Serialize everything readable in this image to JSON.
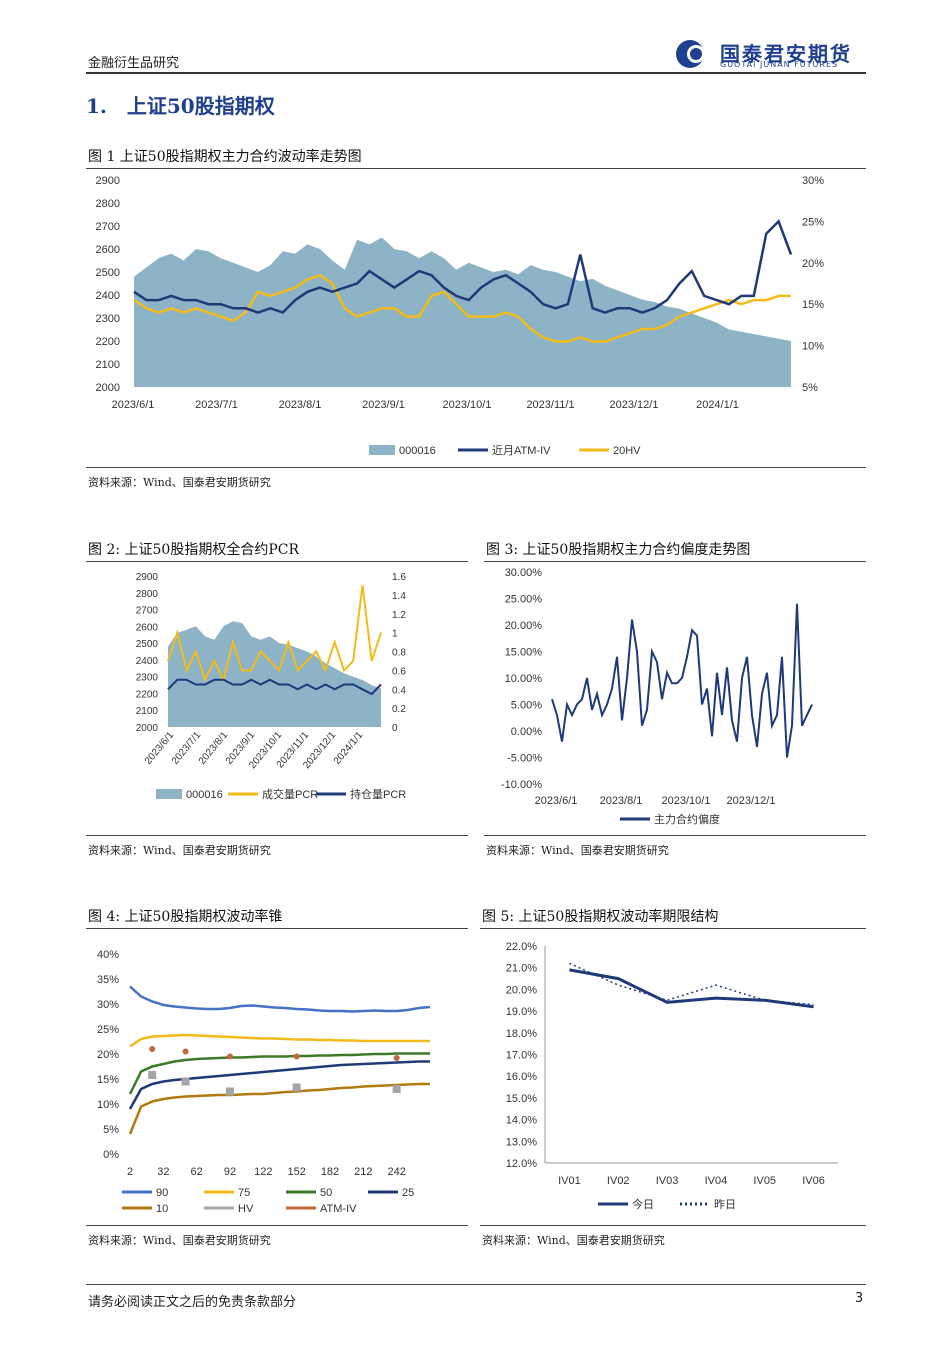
{
  "header": {
    "left": "金融衍生品研究",
    "logo_cn": "国泰君安期货",
    "logo_en": "GUOTAI JUNAN FUTURES"
  },
  "section_title": "1.　上证50股指期权",
  "figures": {
    "fig1_title": "图 1  上证50股指期权主力合约波动率走势图",
    "fig2_title": "图 2:  上证50股指期权全合约PCR",
    "fig3_title": "图 3:  上证50股指期权主力合约偏度走势图",
    "fig4_title": "图 4:  上证50股指期权波动率锥",
    "fig5_title": "图 5:  上证50股指期权波动率期限结构"
  },
  "source": "资料来源：Wind、国泰君安期货研究",
  "footer": {
    "disclaimer": "请务必阅读正文之后的免责条款部分",
    "page": "3"
  },
  "colors": {
    "area": "#8db3c7",
    "navy": "#1f3a78",
    "gold": "#f2bb1a",
    "blue": "#4472c4",
    "green": "#3d7a28",
    "olive": "#b07a10",
    "gray": "#a5a5a5",
    "brown": "#c0693a"
  },
  "chart_data": [
    {
      "id": "fig1",
      "type": "area+line",
      "x_ticks": [
        "2023/6/1",
        "2023/7/1",
        "2023/8/1",
        "2023/9/1",
        "2023/10/1",
        "2023/11/1",
        "2023/12/1",
        "2024/1/1"
      ],
      "y_left": {
        "range": [
          2000,
          2900
        ],
        "ticks": [
          "2900",
          "2800",
          "2700",
          "2600",
          "2500",
          "2400",
          "2300",
          "2200",
          "2100",
          "2000"
        ]
      },
      "y_right": {
        "range": [
          5,
          30
        ],
        "ticks": [
          "30%",
          "25%",
          "20%",
          "15%",
          "10%",
          "5%"
        ]
      },
      "series": [
        {
          "name": "000016",
          "axis": "left",
          "kind": "area",
          "values": [
            2480,
            2520,
            2560,
            2580,
            2550,
            2600,
            2590,
            2560,
            2540,
            2520,
            2500,
            2530,
            2590,
            2580,
            2620,
            2600,
            2550,
            2510,
            2640,
            2620,
            2650,
            2600,
            2590,
            2560,
            2590,
            2560,
            2510,
            2540,
            2520,
            2500,
            2510,
            2490,
            2530,
            2510,
            2500,
            2480,
            2460,
            2470,
            2440,
            2420,
            2400,
            2380,
            2370,
            2350,
            2340,
            2320,
            2300,
            2280,
            2250,
            2240,
            2230,
            2220,
            2210,
            2200
          ]
        },
        {
          "name": "近月ATM-IV",
          "axis": "right",
          "kind": "line",
          "values": [
            16.5,
            15.5,
            15.5,
            16,
            15.5,
            15.5,
            15,
            15,
            14.5,
            14.5,
            14,
            14.5,
            14,
            15.5,
            16.5,
            17,
            16.5,
            17,
            17.5,
            19,
            18,
            17,
            18,
            19,
            18.5,
            17,
            16,
            15.5,
            17,
            18,
            18.5,
            17.5,
            16.5,
            15,
            14.5,
            15,
            21,
            14.5,
            14,
            14.5,
            14.5,
            14,
            14.5,
            15.5,
            17.5,
            19,
            16,
            15.5,
            15,
            16,
            16,
            23.5,
            25,
            21
          ]
        },
        {
          "name": "20HV",
          "axis": "right",
          "kind": "line",
          "values": [
            15.5,
            14.5,
            14,
            14.5,
            14,
            14.5,
            14,
            13.5,
            13,
            14,
            16.5,
            16,
            16.5,
            17,
            18,
            18.5,
            17.5,
            14.5,
            13.5,
            14,
            14.5,
            14.5,
            13.5,
            13.5,
            16,
            16.5,
            15,
            13.5,
            13.5,
            13.5,
            14,
            13.5,
            12,
            11,
            10.5,
            10.5,
            11,
            10.5,
            10.5,
            11,
            11.5,
            12,
            12,
            12.5,
            13.5,
            14,
            14.5,
            15,
            15.5,
            15,
            15.5,
            15.5,
            16,
            16
          ]
        }
      ]
    },
    {
      "id": "fig2",
      "type": "area+line",
      "x_ticks": [
        "2023/6/1",
        "2023/7/1",
        "2023/8/1",
        "2023/9/1",
        "2023/10/1",
        "2023/11/1",
        "2023/12/1",
        "2024/1/1"
      ],
      "y_left": {
        "range": [
          2000,
          2900
        ],
        "ticks": [
          "2900",
          "2800",
          "2700",
          "2600",
          "2500",
          "2400",
          "2300",
          "2200",
          "2100",
          "2000"
        ]
      },
      "y_right": {
        "range": [
          0,
          1.6
        ],
        "ticks": [
          "1.6",
          "1.4",
          "1.2",
          "1",
          "0.8",
          "0.6",
          "0.4",
          "0.2",
          "0"
        ]
      },
      "series": [
        {
          "name": "000016",
          "axis": "left",
          "kind": "area",
          "values": [
            2480,
            2560,
            2580,
            2600,
            2540,
            2520,
            2600,
            2630,
            2620,
            2540,
            2520,
            2540,
            2500,
            2490,
            2470,
            2450,
            2420,
            2380,
            2350,
            2320,
            2300,
            2280,
            2250,
            2230
          ]
        },
        {
          "name": "成交量PCR",
          "axis": "right",
          "kind": "line",
          "values": [
            0.7,
            1.0,
            0.6,
            0.8,
            0.5,
            0.7,
            0.5,
            0.9,
            0.6,
            0.6,
            0.8,
            0.7,
            0.6,
            0.9,
            0.6,
            0.7,
            0.8,
            0.6,
            0.9,
            0.6,
            0.7,
            1.5,
            0.7,
            1.0
          ]
        },
        {
          "name": "持仓量PCR",
          "axis": "right",
          "kind": "line",
          "values": [
            0.4,
            0.5,
            0.5,
            0.45,
            0.45,
            0.5,
            0.5,
            0.45,
            0.45,
            0.5,
            0.45,
            0.5,
            0.45,
            0.45,
            0.4,
            0.45,
            0.4,
            0.45,
            0.4,
            0.45,
            0.45,
            0.4,
            0.35,
            0.45
          ]
        }
      ]
    },
    {
      "id": "fig3",
      "type": "line",
      "x_ticks": [
        "2023/6/1",
        "2023/8/1",
        "2023/10/1",
        "2023/12/1"
      ],
      "y": {
        "range": [
          -10,
          30
        ],
        "ticks": [
          "30.00%",
          "25.00%",
          "20.00%",
          "15.00%",
          "10.00%",
          "5.00%",
          "0.00%",
          "-5.00%",
          "-10.00%"
        ]
      },
      "series": [
        {
          "name": "主力合约偏度",
          "values": [
            6,
            3,
            -2,
            5,
            3,
            5,
            6,
            10,
            4,
            7,
            3,
            5,
            8,
            14,
            2,
            10,
            21,
            15,
            1,
            4,
            15,
            13,
            6,
            11,
            9,
            9,
            10,
            14,
            19,
            18,
            5,
            8,
            -1,
            11,
            3,
            12,
            2,
            -2,
            10,
            14,
            3,
            -3,
            7,
            11,
            1,
            3,
            14,
            -5,
            1,
            24,
            1,
            3,
            5
          ]
        }
      ]
    },
    {
      "id": "fig4",
      "type": "line",
      "x_ticks": [
        "2",
        "32",
        "62",
        "92",
        "122",
        "152",
        "182",
        "212",
        "242"
      ],
      "y": {
        "range": [
          0,
          40
        ],
        "ticks": [
          "40%",
          "35%",
          "30%",
          "25%",
          "20%",
          "15%",
          "10%",
          "5%",
          "0%"
        ]
      },
      "series": [
        {
          "name": "90",
          "values": [
            33.5,
            31.5,
            30.5,
            29.8,
            29.5,
            29.3,
            29.1,
            29,
            29,
            29.2,
            29.6,
            29.7,
            29.5,
            29.3,
            29.2,
            29,
            28.9,
            28.7,
            28.6,
            28.6,
            28.5,
            28.6,
            28.7,
            28.6,
            28.6,
            28.8,
            29.2,
            29.4
          ]
        },
        {
          "name": "75",
          "values": [
            21.5,
            23,
            23.5,
            23.6,
            23.7,
            23.8,
            23.7,
            23.6,
            23.5,
            23.4,
            23.3,
            23.2,
            23.1,
            23.1,
            23,
            22.9,
            22.9,
            22.8,
            22.8,
            22.7,
            22.7,
            22.6,
            22.6,
            22.6,
            22.6,
            22.6,
            22.6,
            22.6
          ]
        },
        {
          "name": "50",
          "values": [
            12,
            16.5,
            17.5,
            18,
            18.5,
            18.8,
            19,
            19.1,
            19.2,
            19.3,
            19.3,
            19.4,
            19.5,
            19.5,
            19.5,
            19.6,
            19.6,
            19.7,
            19.7,
            19.8,
            19.8,
            19.9,
            20,
            20,
            20.1,
            20.1,
            20.1,
            20.1
          ]
        },
        {
          "name": "25",
          "values": [
            9,
            13,
            14,
            14.5,
            14.8,
            15,
            15.2,
            15.4,
            15.6,
            15.8,
            16,
            16.2,
            16.4,
            16.6,
            16.8,
            17,
            17.2,
            17.4,
            17.6,
            17.8,
            17.9,
            18,
            18.1,
            18.2,
            18.3,
            18.4,
            18.5,
            18.5
          ]
        },
        {
          "name": "10",
          "values": [
            4,
            9.5,
            10.5,
            11,
            11.3,
            11.5,
            11.6,
            11.7,
            11.8,
            11.8,
            11.9,
            12,
            12,
            12.2,
            12.4,
            12.5,
            12.7,
            12.8,
            13,
            13.2,
            13.3,
            13.5,
            13.6,
            13.7,
            13.8,
            13.9,
            14,
            14
          ]
        },
        {
          "name": "HV",
          "kind": "marker",
          "points": [
            [
              22,
              15.8
            ],
            [
              52,
              14.5
            ],
            [
              92,
              12.5
            ],
            [
              152,
              13.3
            ],
            [
              242,
              13
            ]
          ]
        },
        {
          "name": "ATM-IV",
          "kind": "marker",
          "points": [
            [
              22,
              21
            ],
            [
              52,
              20.5
            ],
            [
              92,
              19.5
            ],
            [
              152,
              19.5
            ],
            [
              242,
              19.2
            ]
          ]
        }
      ],
      "legend": [
        "90",
        "75",
        "50",
        "25",
        "10",
        "HV",
        "ATM-IV"
      ]
    },
    {
      "id": "fig5",
      "type": "line",
      "categories": [
        "IV01",
        "IV02",
        "IV03",
        "IV04",
        "IV05",
        "IV06"
      ],
      "y": {
        "range": [
          12,
          22
        ],
        "ticks": [
          "22.0%",
          "21.0%",
          "20.0%",
          "19.0%",
          "18.0%",
          "17.0%",
          "16.0%",
          "15.0%",
          "14.0%",
          "13.0%",
          "12.0%"
        ]
      },
      "series": [
        {
          "name": "今日",
          "values": [
            20.9,
            20.5,
            19.4,
            19.6,
            19.5,
            19.2
          ]
        },
        {
          "name": "昨日",
          "values": [
            21.2,
            20.2,
            19.5,
            20.2,
            19.5,
            19.3
          ]
        }
      ]
    }
  ]
}
